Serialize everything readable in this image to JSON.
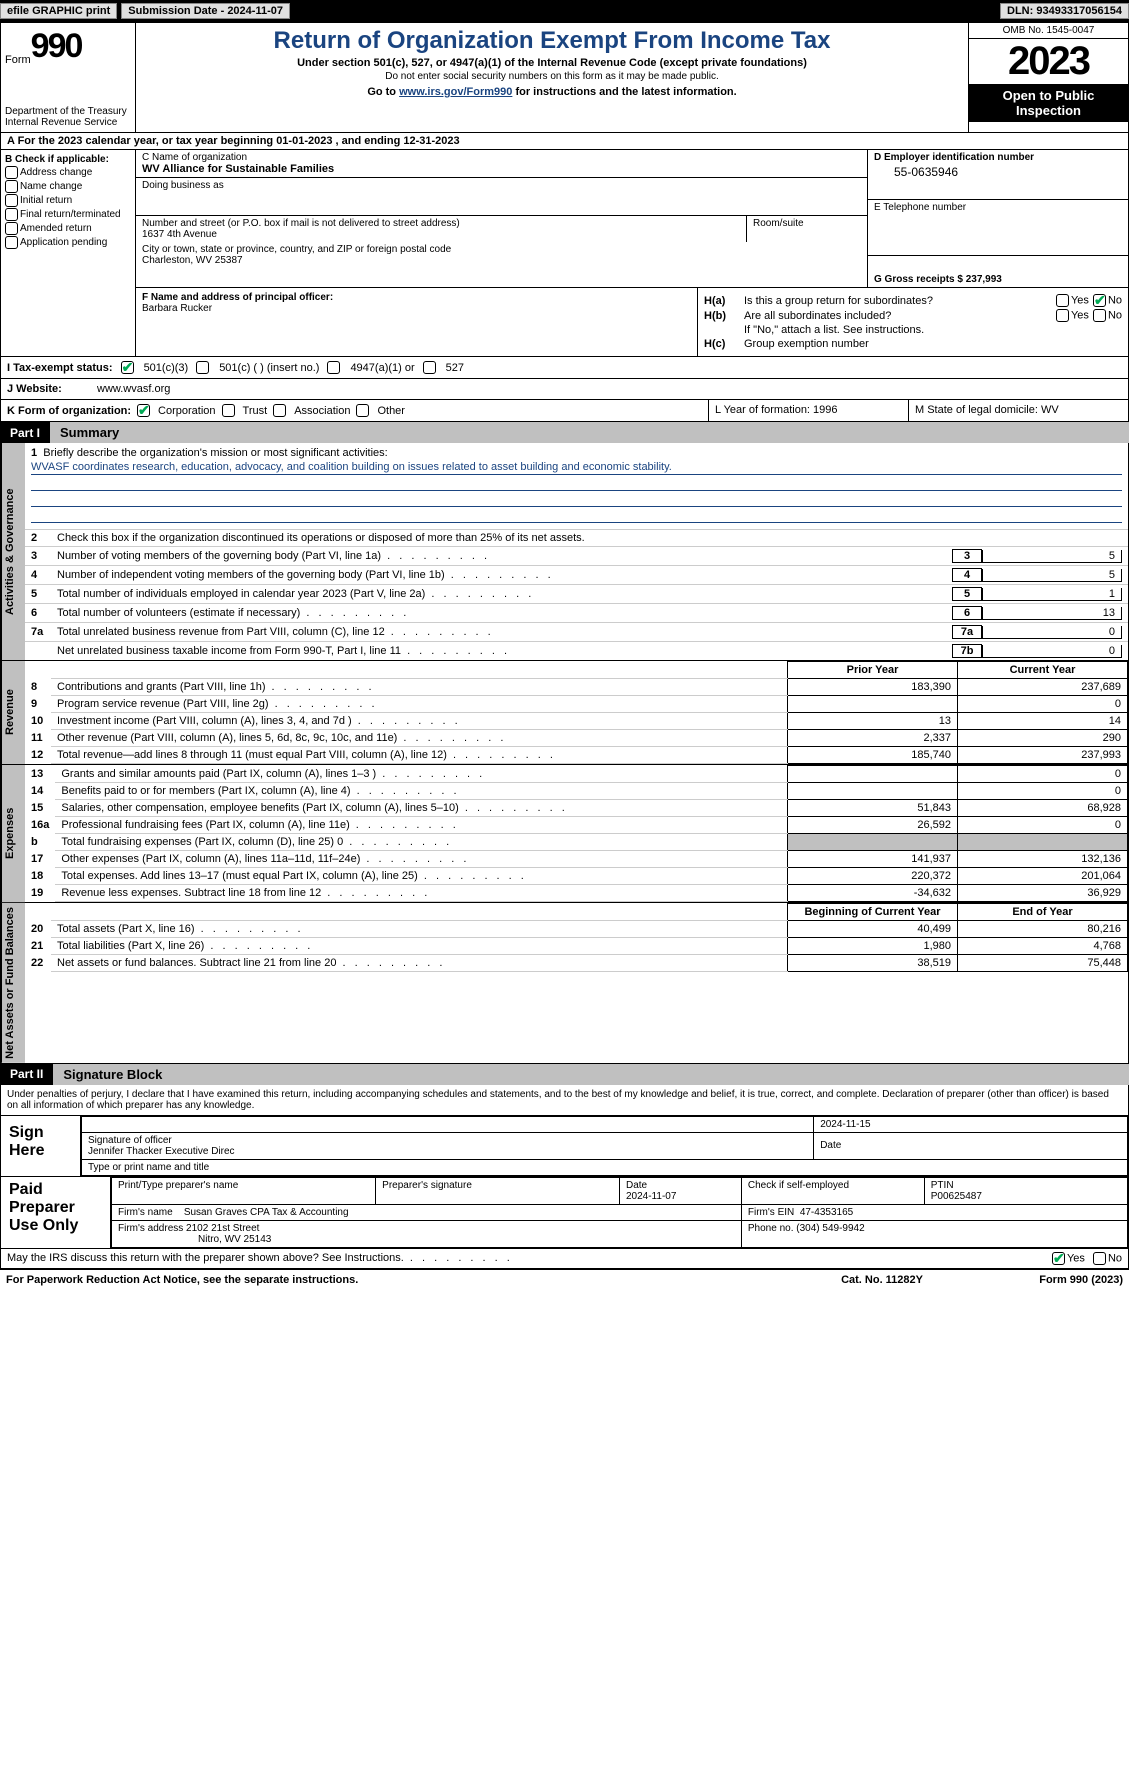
{
  "topbar": {
    "efile": "efile GRAPHIC print",
    "submission": "Submission Date - 2024-11-07",
    "dln": "DLN: 93493317056154"
  },
  "header": {
    "form_label": "Form",
    "form_number": "990",
    "dept1": "Department of the Treasury",
    "dept2": "Internal Revenue Service",
    "title": "Return of Organization Exempt From Income Tax",
    "sub": "Under section 501(c), 527, or 4947(a)(1) of the Internal Revenue Code (except private foundations)",
    "sub2": "Do not enter social security numbers on this form as it may be made public.",
    "sub3a": "Go to ",
    "sub3_link": "www.irs.gov/Form990",
    "sub3b": " for instructions and the latest information.",
    "omb": "OMB No. 1545-0047",
    "year": "2023",
    "open_public": "Open to Public Inspection"
  },
  "row_a": "A For the 2023 calendar year, or tax year beginning 01-01-2023    , and ending 12-31-2023",
  "box_b": {
    "label": "B Check if applicable:",
    "items": [
      "Address change",
      "Name change",
      "Initial return",
      "Final return/terminated",
      "Amended return",
      "Application pending"
    ]
  },
  "box_c": {
    "name_label": "C Name of organization",
    "name": "WV Alliance for Sustainable Families",
    "dba_label": "Doing business as",
    "addr_label": "Number and street (or P.O. box if mail is not delivered to street address)",
    "addr": "1637 4th Avenue",
    "room_label": "Room/suite",
    "city_label": "City or town, state or province, country, and ZIP or foreign postal code",
    "city": "Charleston, WV  25387"
  },
  "box_d": {
    "label": "D Employer identification number",
    "value": "55-0635946",
    "e_label": "E Telephone number",
    "g_label": "G Gross receipts $ 237,993"
  },
  "box_f": {
    "label": "F  Name and address of principal officer:",
    "name": "Barbara Rucker"
  },
  "box_h": {
    "ha_label": "H(a)",
    "ha_text": "Is this a group return for subordinates?",
    "hb_label": "H(b)",
    "hb_text": "Are all subordinates included?",
    "hb_note": "If \"No,\" attach a list. See instructions.",
    "hc_label": "H(c)",
    "hc_text": "Group exemption number",
    "yes": "Yes",
    "no": "No"
  },
  "row_i": {
    "label": "I   Tax-exempt status:",
    "opt1": "501(c)(3)",
    "opt2": "501(c) (  ) (insert no.)",
    "opt3": "4947(a)(1) or",
    "opt4": "527"
  },
  "row_j": {
    "label": "J   Website:",
    "value": "www.wvasf.org"
  },
  "row_k": {
    "label": "K Form of organization:",
    "opt1": "Corporation",
    "opt2": "Trust",
    "opt3": "Association",
    "opt4": "Other",
    "l": "L Year of formation: 1996",
    "m": "M State of legal domicile: WV"
  },
  "part1": {
    "label": "Part I",
    "title": "Summary"
  },
  "part2": {
    "label": "Part II",
    "title": "Signature Block"
  },
  "vert_labels": {
    "ag": "Activities & Governance",
    "rev": "Revenue",
    "exp": "Expenses",
    "nab": "Net Assets or Fund Balances"
  },
  "summary": {
    "l1_label": "1",
    "l1_text": "Briefly describe the organization's mission or most significant activities:",
    "l1_mission": "WVASF coordinates research, education, advocacy, and coalition building on issues related to asset building and economic stability.",
    "l2": "Check this box       if the organization discontinued its operations or disposed of more than 25% of its net assets.",
    "rows_simple": [
      {
        "n": "3",
        "d": "Number of voting members of the governing body (Part VI, line 1a)",
        "box": "3",
        "v": "5"
      },
      {
        "n": "4",
        "d": "Number of independent voting members of the governing body (Part VI, line 1b)",
        "box": "4",
        "v": "5"
      },
      {
        "n": "5",
        "d": "Total number of individuals employed in calendar year 2023 (Part V, line 2a)",
        "box": "5",
        "v": "1"
      },
      {
        "n": "6",
        "d": "Total number of volunteers (estimate if necessary)",
        "box": "6",
        "v": "13"
      },
      {
        "n": "7a",
        "d": "Total unrelated business revenue from Part VIII, column (C), line 12",
        "box": "7a",
        "v": "0"
      },
      {
        "n": "",
        "d": "Net unrelated business taxable income from Form 990-T, Part I, line 11",
        "box": "7b",
        "v": "0"
      }
    ],
    "col_headers": {
      "py": "Prior Year",
      "cy": "Current Year",
      "boy": "Beginning of Current Year",
      "eoy": "End of Year"
    },
    "rev_rows": [
      {
        "n": "8",
        "d": "Contributions and grants (Part VIII, line 1h)",
        "py": "183,390",
        "cy": "237,689"
      },
      {
        "n": "9",
        "d": "Program service revenue (Part VIII, line 2g)",
        "py": "",
        "cy": "0"
      },
      {
        "n": "10",
        "d": "Investment income (Part VIII, column (A), lines 3, 4, and 7d )",
        "py": "13",
        "cy": "14"
      },
      {
        "n": "11",
        "d": "Other revenue (Part VIII, column (A), lines 5, 6d, 8c, 9c, 10c, and 11e)",
        "py": "2,337",
        "cy": "290"
      },
      {
        "n": "12",
        "d": "Total revenue—add lines 8 through 11 (must equal Part VIII, column (A), line 12)",
        "py": "185,740",
        "cy": "237,993"
      }
    ],
    "exp_rows": [
      {
        "n": "13",
        "d": "Grants and similar amounts paid (Part IX, column (A), lines 1–3 )",
        "py": "",
        "cy": "0"
      },
      {
        "n": "14",
        "d": "Benefits paid to or for members (Part IX, column (A), line 4)",
        "py": "",
        "cy": "0"
      },
      {
        "n": "15",
        "d": "Salaries, other compensation, employee benefits (Part IX, column (A), lines 5–10)",
        "py": "51,843",
        "cy": "68,928"
      },
      {
        "n": "16a",
        "d": "Professional fundraising fees (Part IX, column (A), line 11e)",
        "py": "26,592",
        "cy": "0"
      },
      {
        "n": "b",
        "d": "Total fundraising expenses (Part IX, column (D), line 25) 0",
        "py": "BLANK",
        "cy": "BLANK"
      },
      {
        "n": "17",
        "d": "Other expenses (Part IX, column (A), lines 11a–11d, 11f–24e)",
        "py": "141,937",
        "cy": "132,136"
      },
      {
        "n": "18",
        "d": "Total expenses. Add lines 13–17 (must equal Part IX, column (A), line 25)",
        "py": "220,372",
        "cy": "201,064"
      },
      {
        "n": "19",
        "d": "Revenue less expenses. Subtract line 18 from line 12",
        "py": "-34,632",
        "cy": "36,929"
      }
    ],
    "nab_rows": [
      {
        "n": "20",
        "d": "Total assets (Part X, line 16)",
        "py": "40,499",
        "cy": "80,216"
      },
      {
        "n": "21",
        "d": "Total liabilities (Part X, line 26)",
        "py": "1,980",
        "cy": "4,768"
      },
      {
        "n": "22",
        "d": "Net assets or fund balances. Subtract line 21 from line 20",
        "py": "38,519",
        "cy": "75,448"
      }
    ]
  },
  "sig_text": "Under penalties of perjury, I declare that I have examined this return, including accompanying schedules and statements, and to the best of my knowledge and belief, it is true, correct, and complete. Declaration of preparer (other than officer) is based on all information of which preparer has any knowledge.",
  "sign": {
    "label": "Sign Here",
    "sig_label": "Signature of officer",
    "name": "Jennifer Thacker Executive Direc",
    "type_label": "Type or print name and title",
    "date_label": "Date",
    "date": "2024-11-15"
  },
  "paid": {
    "label": "Paid Preparer Use Only",
    "h1": "Print/Type preparer's name",
    "h2": "Preparer's signature",
    "h3": "Date",
    "date": "2024-11-07",
    "h4": "Check        if self-employed",
    "h5": "PTIN",
    "ptin": "P00625487",
    "firm_label": "Firm's name",
    "firm": "Susan Graves CPA Tax & Accounting",
    "ein_label": "Firm's EIN",
    "ein": "47-4353165",
    "addr_label": "Firm's address",
    "addr1": "2102 21st Street",
    "addr2": "Nitro, WV  25143",
    "phone_label": "Phone no.",
    "phone": "(304) 549-9942"
  },
  "discuss": {
    "text": "May the IRS discuss this return with the preparer shown above? See Instructions.",
    "yes": "Yes",
    "no": "No"
  },
  "footer": {
    "left": "For Paperwork Reduction Act Notice, see the separate instructions.",
    "center": "Cat. No. 11282Y",
    "right": "Form 990 (2023)"
  }
}
